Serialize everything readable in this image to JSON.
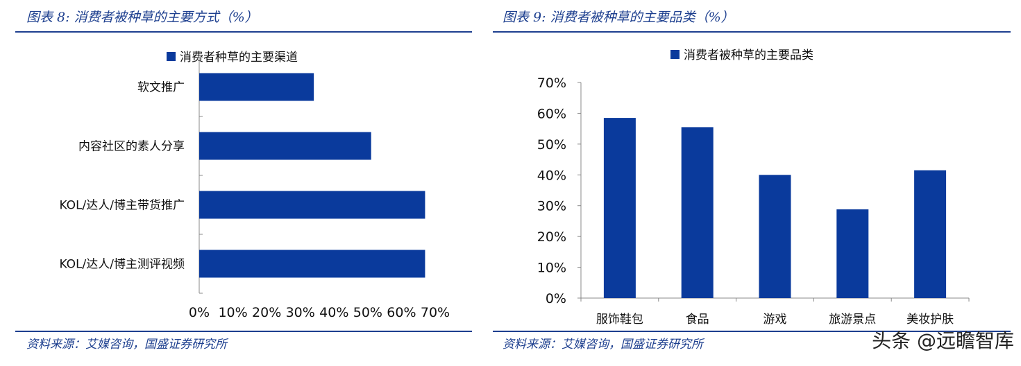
{
  "left": {
    "title": "图表 8:  消费者被种草的主要方式（%）",
    "source": "资料来源：艾媒咨询，国盛证券研究所"
  },
  "right": {
    "title": "图表 9:  消费者被种草的主要品类（%）",
    "source": "资料来源：艾媒咨询，国盛证券研究所"
  },
  "watermark": "头条 @远瞻智库",
  "colors": {
    "bar": "#0a3a9c",
    "accent": "#1d3f8f"
  },
  "chart_data": [
    {
      "type": "bar",
      "orientation": "horizontal",
      "legend": "消费者种草的主要渠道",
      "legend_position": "top",
      "categories": [
        "软文推广",
        "内容社区的素人分享",
        "KOL/达人/博主带货推广",
        "KOL/达人/博主测评视频"
      ],
      "values": [
        34,
        51,
        67,
        67
      ],
      "xlim": [
        0,
        70
      ],
      "xticks": [
        "0%",
        "10%",
        "20%",
        "30%",
        "40%",
        "50%",
        "60%",
        "70%"
      ],
      "grid": false
    },
    {
      "type": "bar",
      "orientation": "vertical",
      "legend": "消费者被种草的主要品类",
      "legend_position": "top",
      "categories": [
        "服饰鞋包",
        "食品",
        "游戏",
        "旅游景点",
        "美妆护肤"
      ],
      "values": [
        58.5,
        55.5,
        40,
        28.8,
        41.5
      ],
      "ylim": [
        0,
        70
      ],
      "yticks": [
        "0%",
        "10%",
        "20%",
        "30%",
        "40%",
        "50%",
        "60%",
        "70%"
      ],
      "grid": false
    }
  ]
}
